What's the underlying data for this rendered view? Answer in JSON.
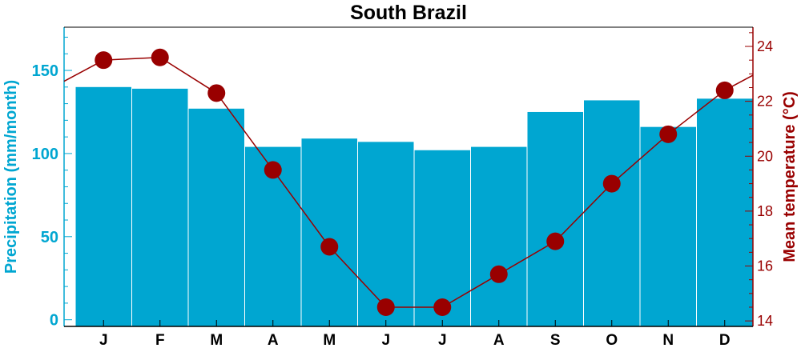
{
  "chart_data": {
    "type": "bar",
    "title": "South Brazil",
    "categories": [
      "J",
      "F",
      "M",
      "A",
      "M",
      "J",
      "J",
      "A",
      "S",
      "O",
      "N",
      "D"
    ],
    "series": [
      {
        "type": "bar",
        "axis": "left",
        "values": [
          140,
          139,
          127,
          104,
          109,
          107,
          102,
          104,
          125,
          132,
          116,
          133
        ],
        "color": "#00A6D1"
      },
      {
        "type": "line",
        "axis": "right",
        "values": [
          23.5,
          23.6,
          22.3,
          19.5,
          16.7,
          14.5,
          14.5,
          15.7,
          16.9,
          19.0,
          20.8,
          22.4
        ],
        "color": "#990000"
      }
    ],
    "ylabel": "Precipitation (mm/month)",
    "ylim": [
      -4,
      176
    ],
    "yticks": [
      "0",
      "50",
      "100",
      "150"
    ],
    "y2label": "Mean temperature (°C)",
    "y2lim": [
      13.8,
      24.7
    ],
    "y2ticks": [
      "14",
      "16",
      "18",
      "20",
      "22",
      "24"
    ],
    "colors": {
      "left_axis": "#00A6D1",
      "right_axis": "#990000"
    },
    "grid": false,
    "legend": "none"
  }
}
